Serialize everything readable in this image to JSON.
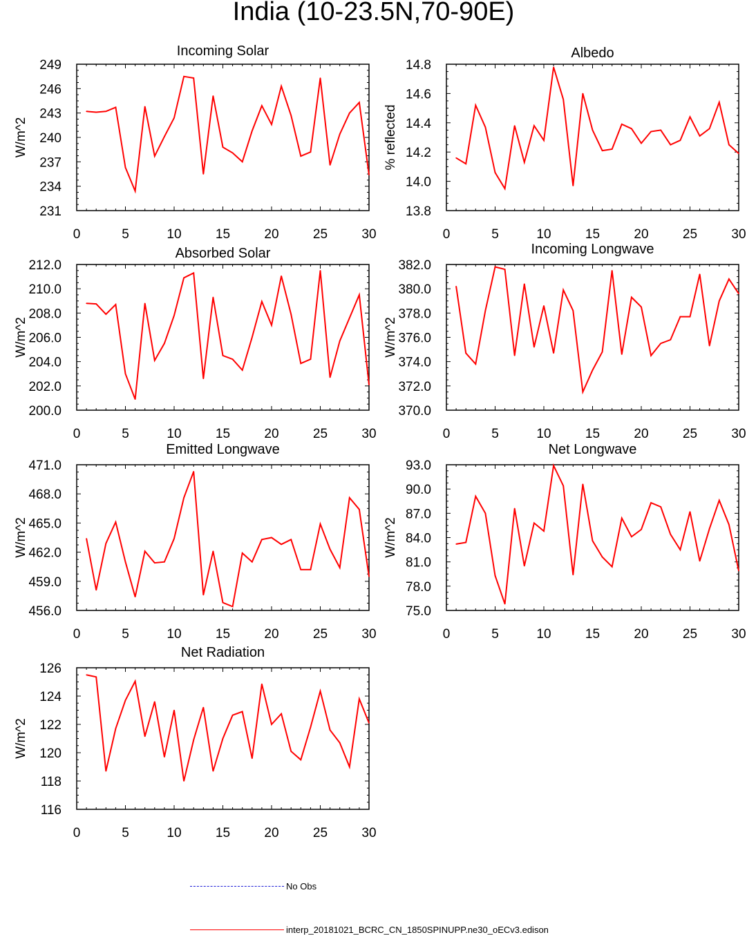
{
  "figure": {
    "title": "India (10-23.5N,70-90E)",
    "line_color": "#ff0000",
    "obs_color": "#1a1ad6"
  },
  "legend": {
    "obs_label": "No Obs",
    "model_label": "interp_20181021_BCRC_CN_1850SPINUPP.ne30_oECv3.edison"
  },
  "chart_data": [
    {
      "type": "line",
      "title": "Incoming Solar",
      "ylabel": "W/m^2",
      "xlabel": "",
      "xlim": [
        0,
        30
      ],
      "ylim": [
        231,
        249
      ],
      "xticks": [
        0,
        5,
        10,
        15,
        20,
        25,
        30
      ],
      "yticks": [
        231,
        234,
        237,
        240,
        243,
        246,
        249
      ],
      "ytick_labels": [
        "231",
        "234",
        "237",
        "240",
        "243",
        "246",
        "249"
      ],
      "x": [
        1,
        2,
        3,
        4,
        5,
        6,
        7,
        8,
        9,
        10,
        11,
        12,
        13,
        14,
        15,
        16,
        17,
        18,
        19,
        20,
        21,
        22,
        23,
        24,
        25,
        26,
        27,
        28,
        29,
        30
      ],
      "series": [
        {
          "name": "interp_20181021_BCRC_CN_1850SPINUPP.ne30_oECv3.edison",
          "values": [
            243.2,
            243.1,
            243.2,
            243.7,
            236.3,
            233.4,
            243.8,
            237.7,
            240.1,
            242.4,
            247.5,
            247.3,
            235.5,
            245.1,
            238.8,
            238.1,
            237.0,
            240.8,
            243.9,
            241.6,
            246.3,
            242.7,
            237.7,
            238.2,
            247.3,
            236.6,
            240.4,
            243.0,
            244.3,
            235.4
          ]
        }
      ]
    },
    {
      "type": "line",
      "title": "Albedo",
      "ylabel": "% reflected",
      "xlabel": "",
      "xlim": [
        0,
        30
      ],
      "ylim": [
        13.8,
        14.8
      ],
      "xticks": [
        0,
        5,
        10,
        15,
        20,
        25,
        30
      ],
      "yticks": [
        13.8,
        14.0,
        14.2,
        14.4,
        14.6,
        14.8
      ],
      "ytick_labels": [
        "13.8",
        "14.0",
        "14.2",
        "14.4",
        "14.6",
        "14.8"
      ],
      "x": [
        1,
        2,
        3,
        4,
        5,
        6,
        7,
        8,
        9,
        10,
        11,
        12,
        13,
        14,
        15,
        16,
        17,
        18,
        19,
        20,
        21,
        22,
        23,
        24,
        25,
        26,
        27,
        28,
        29,
        30
      ],
      "series": [
        {
          "name": "interp_20181021_BCRC_CN_1850SPINUPP.ne30_oECv3.edison",
          "values": [
            14.16,
            14.12,
            14.52,
            14.37,
            14.06,
            13.95,
            14.38,
            14.13,
            14.38,
            14.28,
            14.78,
            14.56,
            13.97,
            14.6,
            14.35,
            14.21,
            14.22,
            14.39,
            14.36,
            14.26,
            14.34,
            14.35,
            14.25,
            14.28,
            14.44,
            14.31,
            14.36,
            14.54,
            14.25,
            14.19
          ]
        }
      ]
    },
    {
      "type": "line",
      "title": "Absorbed Solar",
      "ylabel": "W/m^2",
      "xlabel": "",
      "xlim": [
        0,
        30
      ],
      "ylim": [
        200,
        212
      ],
      "xticks": [
        0,
        5,
        10,
        15,
        20,
        25,
        30
      ],
      "yticks": [
        200,
        202,
        204,
        206,
        208,
        210,
        212
      ],
      "ytick_labels": [
        "200.0",
        "202.0",
        "204.0",
        "206.0",
        "208.0",
        "210.0",
        "212.0"
      ],
      "x": [
        1,
        2,
        3,
        4,
        5,
        6,
        7,
        8,
        9,
        10,
        11,
        12,
        13,
        14,
        15,
        16,
        17,
        18,
        19,
        20,
        21,
        22,
        23,
        24,
        25,
        26,
        27,
        28,
        29,
        30
      ],
      "series": [
        {
          "name": "interp_20181021_BCRC_CN_1850SPINUPP.ne30_oECv3.edison",
          "values": [
            208.8,
            208.75,
            207.9,
            208.7,
            203.0,
            200.9,
            208.8,
            204.1,
            205.5,
            207.8,
            210.9,
            211.3,
            202.6,
            209.3,
            204.5,
            204.2,
            203.3,
            206.0,
            208.95,
            207.0,
            211.05,
            207.9,
            203.85,
            204.2,
            211.5,
            202.7,
            205.7,
            207.6,
            209.5,
            202.1
          ]
        }
      ]
    },
    {
      "type": "line",
      "title": "Incoming Longwave",
      "ylabel": "W/m^2",
      "xlabel": "",
      "xlim": [
        0,
        30
      ],
      "ylim": [
        370,
        382
      ],
      "xticks": [
        0,
        5,
        10,
        15,
        20,
        25,
        30
      ],
      "yticks": [
        370,
        372,
        374,
        376,
        378,
        380,
        382
      ],
      "ytick_labels": [
        "370.0",
        "372.0",
        "374.0",
        "376.0",
        "378.0",
        "380.0",
        "382.0"
      ],
      "x": [
        1,
        2,
        3,
        4,
        5,
        6,
        7,
        8,
        9,
        10,
        11,
        12,
        13,
        14,
        15,
        16,
        17,
        18,
        19,
        20,
        21,
        22,
        23,
        24,
        25,
        26,
        27,
        28,
        29,
        30
      ],
      "series": [
        {
          "name": "interp_20181021_BCRC_CN_1850SPINUPP.ne30_oECv3.edison",
          "values": [
            380.2,
            374.7,
            373.8,
            378.2,
            381.8,
            381.6,
            374.5,
            380.4,
            375.2,
            378.6,
            374.7,
            379.9,
            378.2,
            371.5,
            373.3,
            374.8,
            381.5,
            374.6,
            379.3,
            378.5,
            374.5,
            375.5,
            375.8,
            377.7,
            377.7,
            381.2,
            375.3,
            379.0,
            380.8,
            379.6
          ]
        }
      ]
    },
    {
      "type": "line",
      "title": "Emitted Longwave",
      "ylabel": "W/m^2",
      "xlabel": "",
      "xlim": [
        0,
        30
      ],
      "ylim": [
        456,
        471
      ],
      "xticks": [
        0,
        5,
        10,
        15,
        20,
        25,
        30
      ],
      "yticks": [
        456,
        459,
        462,
        465,
        468,
        471
      ],
      "ytick_labels": [
        "456.0",
        "459.0",
        "462.0",
        "465.0",
        "468.0",
        "471.0"
      ],
      "x": [
        1,
        2,
        3,
        4,
        5,
        6,
        7,
        8,
        9,
        10,
        11,
        12,
        13,
        14,
        15,
        16,
        17,
        18,
        19,
        20,
        21,
        22,
        23,
        24,
        25,
        26,
        27,
        28,
        29,
        30
      ],
      "series": [
        {
          "name": "interp_20181021_BCRC_CN_1850SPINUPP.ne30_oECv3.edison",
          "values": [
            463.4,
            458.1,
            462.9,
            465.1,
            461.0,
            457.4,
            462.1,
            460.9,
            461.0,
            463.4,
            467.6,
            470.3,
            457.6,
            462.1,
            456.8,
            456.4,
            461.9,
            461.0,
            463.3,
            463.5,
            462.8,
            463.3,
            460.2,
            460.2,
            464.9,
            462.3,
            460.4,
            467.6,
            466.4,
            459.5
          ]
        }
      ]
    },
    {
      "type": "line",
      "title": "Net Longwave",
      "ylabel": "W/m^2",
      "xlabel": "",
      "xlim": [
        0,
        30
      ],
      "ylim": [
        75,
        93
      ],
      "xticks": [
        0,
        5,
        10,
        15,
        20,
        25,
        30
      ],
      "yticks": [
        75,
        78,
        81,
        84,
        87,
        90,
        93
      ],
      "ytick_labels": [
        "75.0",
        "78.0",
        "81.0",
        "84.0",
        "87.0",
        "90.0",
        "93.0"
      ],
      "x": [
        1,
        2,
        3,
        4,
        5,
        6,
        7,
        8,
        9,
        10,
        11,
        12,
        13,
        14,
        15,
        16,
        17,
        18,
        19,
        20,
        21,
        22,
        23,
        24,
        25,
        26,
        27,
        28,
        29,
        30
      ],
      "series": [
        {
          "name": "interp_20181021_BCRC_CN_1850SPINUPP.ne30_oECv3.edison",
          "values": [
            83.2,
            83.4,
            89.1,
            87.0,
            79.3,
            75.8,
            87.6,
            80.5,
            85.8,
            84.8,
            92.9,
            90.4,
            79.4,
            90.6,
            83.6,
            81.6,
            80.4,
            86.4,
            84.1,
            85.0,
            88.3,
            87.8,
            84.4,
            82.5,
            87.2,
            81.1,
            85.1,
            88.6,
            85.6,
            79.9
          ]
        }
      ]
    },
    {
      "type": "line",
      "title": "Net Radiation",
      "ylabel": "W/m^2",
      "xlabel": "",
      "xlim": [
        0,
        30
      ],
      "ylim": [
        116,
        126
      ],
      "xticks": [
        0,
        5,
        10,
        15,
        20,
        25,
        30
      ],
      "yticks": [
        116,
        118,
        120,
        122,
        124,
        126
      ],
      "ytick_labels": [
        "116",
        "118",
        "120",
        "122",
        "124",
        "126"
      ],
      "x": [
        1,
        2,
        3,
        4,
        5,
        6,
        7,
        8,
        9,
        10,
        11,
        12,
        13,
        14,
        15,
        16,
        17,
        18,
        19,
        20,
        21,
        22,
        23,
        24,
        25,
        26,
        27,
        28,
        29,
        30
      ],
      "series": [
        {
          "name": "interp_20181021_BCRC_CN_1850SPINUPP.ne30_oECv3.edison",
          "values": [
            125.5,
            125.35,
            118.7,
            121.7,
            123.7,
            125.05,
            121.15,
            123.6,
            119.7,
            123.0,
            118.0,
            120.9,
            123.2,
            118.7,
            121.0,
            122.65,
            122.9,
            119.6,
            124.85,
            122.0,
            122.75,
            120.1,
            119.5,
            121.8,
            124.35,
            121.6,
            120.7,
            119.0,
            123.8,
            122.1
          ]
        }
      ]
    }
  ]
}
